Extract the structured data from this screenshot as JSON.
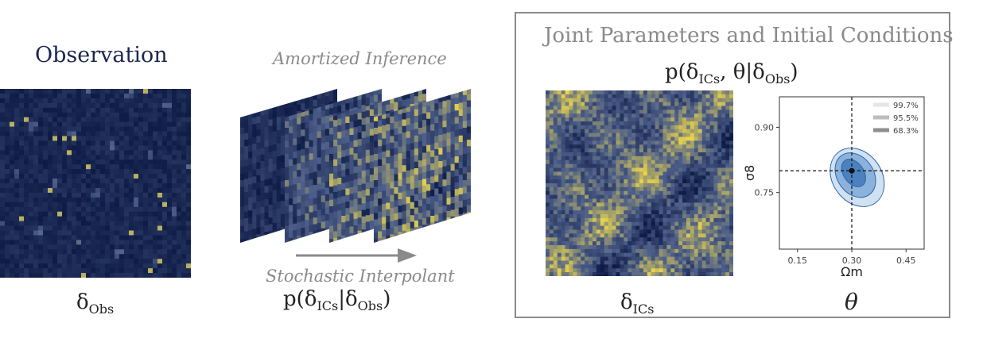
{
  "observation": {
    "title": "Observation",
    "label_base": "δ",
    "label_sub": "Obs"
  },
  "amortized": {
    "title": "Amortized Inference",
    "arrow_label": "Stochastic Interpolant",
    "formula": {
      "prefix": "p(δ",
      "sub1": "ICs",
      "mid": "|δ",
      "sub2": "Obs",
      "suffix": ")"
    }
  },
  "joint": {
    "title": "Joint Parameters and Initial Conditions",
    "formula": {
      "prefix": "p(δ",
      "sub1": "ICs",
      "mid": ", θ|δ",
      "sub2": "Obs",
      "suffix": ")"
    },
    "ics_label_base": "δ",
    "ics_label_sub": "ICs",
    "theta_label": "θ"
  },
  "colors": {
    "navy": "#0d1b45",
    "yellow": "#e8d44d",
    "gray": "#8a8a8a",
    "contour_dark": "#3f78b8",
    "contour_mid": "#7fa9d8",
    "contour_light": "#c7dcf0"
  },
  "chart_data": {
    "type": "scatter",
    "xlabel": "Ωm",
    "ylabel": "σ8",
    "xlim": [
      0.1,
      0.5
    ],
    "ylim": [
      0.62,
      0.97
    ],
    "xticks": [
      "0.15",
      "0.30",
      "0.45"
    ],
    "yticks": [
      "0.75",
      "0.90"
    ],
    "xtick_values": [
      0.15,
      0.3,
      0.45
    ],
    "ytick_values": [
      0.75,
      0.9
    ],
    "truth": {
      "x": 0.3,
      "y": 0.8
    },
    "contours": [
      {
        "level": "68.3%",
        "cx": 0.305,
        "cy": 0.795,
        "rx": 0.028,
        "ry": 0.035
      },
      {
        "level": "95.5%",
        "cx": 0.31,
        "cy": 0.79,
        "rx": 0.05,
        "ry": 0.055
      },
      {
        "level": "99.7%",
        "cx": 0.315,
        "cy": 0.785,
        "rx": 0.068,
        "ry": 0.072
      }
    ],
    "legend": [
      "99.7%",
      "95.5%",
      "68.3%"
    ],
    "legend_position": "top-right"
  }
}
